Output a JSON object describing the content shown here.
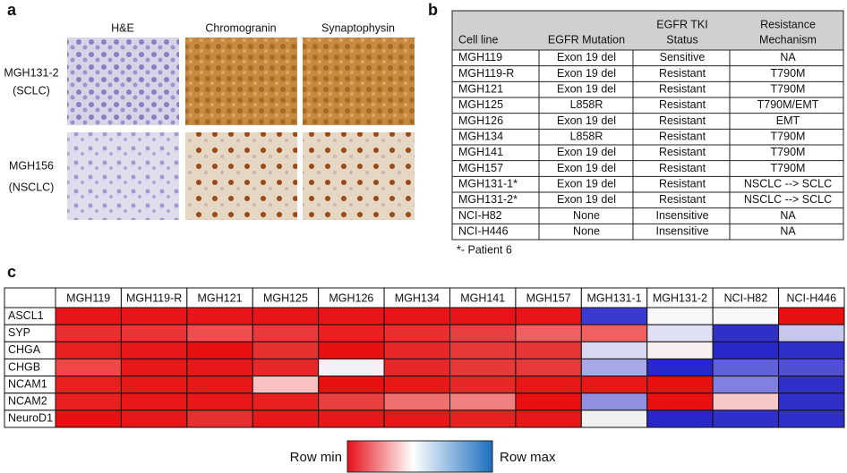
{
  "panel_a": {
    "label": "a",
    "columns": [
      "H&E",
      "Chromogranin",
      "Synaptophysin"
    ],
    "rows": [
      [
        "MGH131-2",
        "(SCLC)"
      ],
      [
        "MGH156",
        "(NSCLC)"
      ]
    ]
  },
  "panel_b": {
    "label": "b",
    "header": [
      [
        "Cell line"
      ],
      [
        "EGFR Mutation"
      ],
      [
        "EGFR TKI",
        "Status"
      ],
      [
        "Resistance",
        "Mechanism"
      ]
    ],
    "rows": [
      [
        "MGH119",
        "Exon 19 del",
        "Sensitive",
        "NA"
      ],
      [
        "MGH119-R",
        "Exon 19 del",
        "Resistant",
        "T790M"
      ],
      [
        "MGH121",
        "Exon 19 del",
        "Resistant",
        "T790M"
      ],
      [
        "MGH125",
        "L858R",
        "Resistant",
        "T790M/EMT"
      ],
      [
        "MGH126",
        "Exon 19 del",
        "Resistant",
        "EMT"
      ],
      [
        "MGH134",
        "L858R",
        "Resistant",
        "T790M"
      ],
      [
        "MGH141",
        "Exon 19 del",
        "Resistant",
        "T790M"
      ],
      [
        "MGH157",
        "Exon 19 del",
        "Resistant",
        "T790M"
      ],
      [
        "MGH131-1*",
        "Exon 19 del",
        "Resistant",
        "NSCLC --> SCLC"
      ],
      [
        "MGH131-2*",
        "Exon 19 del",
        "Resistant",
        "NSCLC --> SCLC"
      ],
      [
        "NCI-H82",
        "None",
        "Insensitive",
        "NA"
      ],
      [
        "NCI-H446",
        "None",
        "Insensitive",
        "NA"
      ]
    ],
    "footnote": "*- Patient 6"
  },
  "panel_c": {
    "label": "c",
    "columns": [
      "MGH119",
      "MGH119-R",
      "MGH121",
      "MGH125",
      "MGH126",
      "MGH134",
      "MGH141",
      "MGH157",
      "MGH131-1",
      "MGH131-2",
      "NCI-H82",
      "NCI-H446"
    ],
    "rows": [
      "ASCL1",
      "SYP",
      "CHGA",
      "CHGB",
      "NCAM1",
      "NCAM2",
      "NeuroD1"
    ],
    "cell_colors": [
      [
        "#e8141a",
        "#e8141a",
        "#e8141a",
        "#e8141a",
        "#e8141a",
        "#e8141a",
        "#e8141a",
        "#e8141a",
        "#3a3ad0",
        "#f8f8f8",
        "#f8f8f8",
        "#e81010"
      ],
      [
        "#e83030",
        "#e83535",
        "#ee5050",
        "#e83a3a",
        "#e82020",
        "#e83030",
        "#e84040",
        "#f06060",
        "#f06060",
        "#e0e0f5",
        "#3030c8",
        "#c8c8ee"
      ],
      [
        "#e82020",
        "#e81818",
        "#e81010",
        "#e83030",
        "#e81010",
        "#e82828",
        "#e83838",
        "#e83535",
        "#d8d8f0",
        "#f8f0f0",
        "#2828c8",
        "#3030c8"
      ],
      [
        "#f04848",
        "#e81818",
        "#e81818",
        "#e82828",
        "#f5f0f5",
        "#e82828",
        "#e83838",
        "#e83a3a",
        "#a8a8e8",
        "#2828c8",
        "#6060d8",
        "#5050d0"
      ],
      [
        "#e82020",
        "#e81818",
        "#e81818",
        "#f8c0c0",
        "#e81010",
        "#e81818",
        "#e82828",
        "#e81818",
        "#e81818",
        "#e81010",
        "#8080e0",
        "#3030c8"
      ],
      [
        "#e82020",
        "#e81818",
        "#e81818",
        "#e82020",
        "#e84040",
        "#f07070",
        "#f08080",
        "#e81010",
        "#9090e0",
        "#e81010",
        "#f8c8c8",
        "#3030c8"
      ],
      [
        "#e81010",
        "#e81818",
        "#e83030",
        "#e81818",
        "#e81818",
        "#e81818",
        "#e82020",
        "#e81818",
        "#f0f0f0",
        "#2828c8",
        "#3030c8",
        "#3030c8"
      ]
    ],
    "legend": {
      "min_label": "Row min",
      "max_label": "Row max"
    }
  }
}
